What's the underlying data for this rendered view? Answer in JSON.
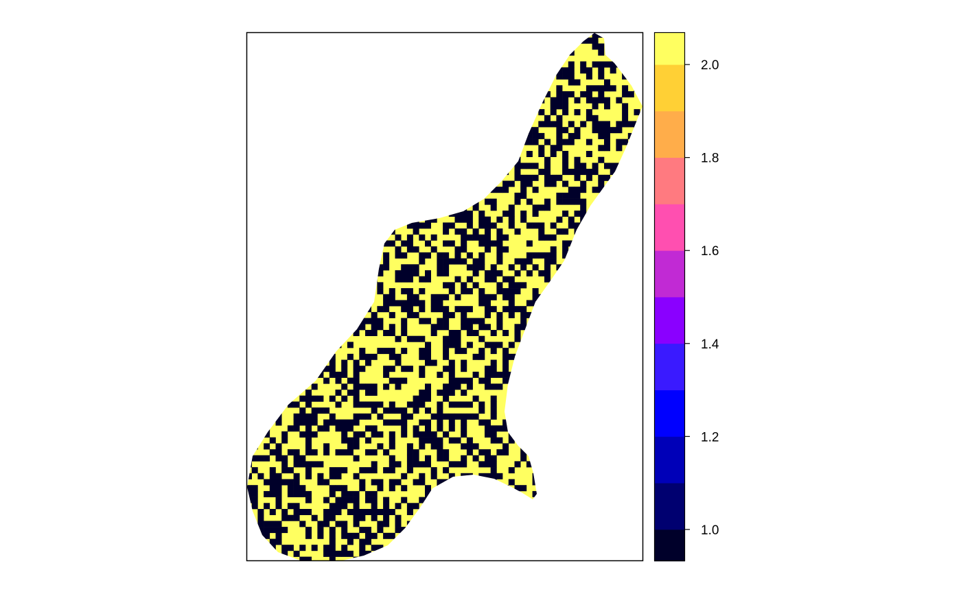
{
  "chart_data": {
    "type": "heatmap",
    "title": "",
    "xlabel": "",
    "ylabel": "",
    "grid": false,
    "legend": "right",
    "values_present": [
      1,
      2
    ],
    "value_colors": {
      "1": "#00002a",
      "2": "#ffff60"
    },
    "background": "#ffffff",
    "raster_columns": 66,
    "raster_rows": 89,
    "colorbar": {
      "range": [
        0.932,
        2.068
      ],
      "bins": [
        {
          "from": 0.932,
          "to": 1.0,
          "color": "#00002a"
        },
        {
          "from": 1.0,
          "to": 1.1,
          "color": "#000070"
        },
        {
          "from": 1.1,
          "to": 1.2,
          "color": "#0000b8"
        },
        {
          "from": 1.2,
          "to": 1.3,
          "color": "#0000ff"
        },
        {
          "from": 1.3,
          "to": 1.4,
          "color": "#3a1aff"
        },
        {
          "from": 1.4,
          "to": 1.5,
          "color": "#8a00ff"
        },
        {
          "from": 1.5,
          "to": 1.6,
          "color": "#c12ad4"
        },
        {
          "from": 1.6,
          "to": 1.7,
          "color": "#ff4fb0"
        },
        {
          "from": 1.7,
          "to": 1.8,
          "color": "#ff7a80"
        },
        {
          "from": 1.8,
          "to": 1.9,
          "color": "#ffad4a"
        },
        {
          "from": 1.9,
          "to": 2.0,
          "color": "#ffd035"
        },
        {
          "from": 2.0,
          "to": 2.068,
          "color": "#ffff60"
        }
      ],
      "ticks": [
        {
          "value": 1.0,
          "label": "1.0"
        },
        {
          "value": 1.2,
          "label": "1.2"
        },
        {
          "value": 1.4,
          "label": "1.4"
        },
        {
          "value": 1.6,
          "label": "1.6"
        },
        {
          "value": 1.8,
          "label": "1.8"
        },
        {
          "value": 2.0,
          "label": "2.0"
        }
      ]
    }
  }
}
